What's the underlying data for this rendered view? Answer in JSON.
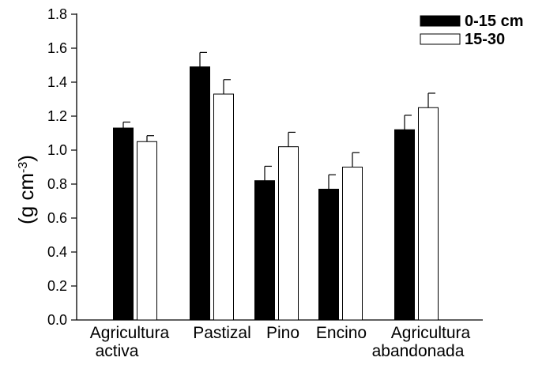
{
  "chart_data": {
    "type": "bar",
    "categories": [
      [
        "Agricultura",
        "activa"
      ],
      [
        "Pastizal"
      ],
      [
        "Pino"
      ],
      [
        "Encino"
      ],
      [
        "Agricultura",
        "abandonada"
      ]
    ],
    "series": [
      {
        "name": "0-15 cm",
        "color": "#000000",
        "values": [
          1.13,
          1.49,
          0.82,
          0.77,
          1.12
        ],
        "errors": [
          0.035,
          0.085,
          0.085,
          0.085,
          0.085
        ]
      },
      {
        "name": "15-30",
        "color": "#ffffff",
        "values": [
          1.05,
          1.33,
          1.02,
          0.9,
          1.25
        ],
        "errors": [
          0.035,
          0.085,
          0.085,
          0.085,
          0.085
        ]
      }
    ],
    "ylabel": {
      "main": "(g cm",
      "sup": "-3",
      "close": ")"
    },
    "ylim": [
      0,
      1.8
    ],
    "yticks": [
      "0.0",
      "0.2",
      "0.4",
      "0.6",
      "0.8",
      "1.0",
      "1.2",
      "1.4",
      "1.6",
      "1.8"
    ],
    "legend_position": "top-right",
    "grid": false
  }
}
